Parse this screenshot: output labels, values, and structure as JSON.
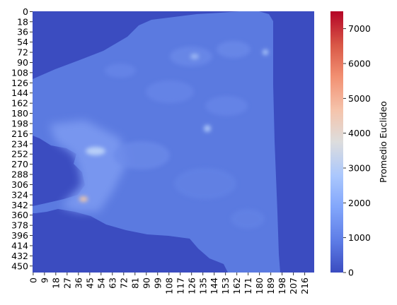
{
  "chart_data": {
    "type": "heatmap",
    "title": "",
    "xlabel": "",
    "ylabel": "",
    "colormap": "coolwarm",
    "background_value": 0,
    "x_tick_labels": [
      "0",
      "9",
      "18",
      "27",
      "36",
      "45",
      "54",
      "63",
      "72",
      "81",
      "90",
      "99",
      "108",
      "117",
      "126",
      "135",
      "144",
      "153",
      "162",
      "171",
      "180",
      "189",
      "198",
      "207",
      "216"
    ],
    "y_tick_labels": [
      "0",
      "18",
      "36",
      "54",
      "72",
      "90",
      "108",
      "126",
      "144",
      "162",
      "180",
      "198",
      "216",
      "234",
      "252",
      "270",
      "288",
      "306",
      "324",
      "342",
      "360",
      "378",
      "396",
      "414",
      "432",
      "450"
    ],
    "x_range": [
      0,
      224
    ],
    "y_range": [
      0,
      462
    ],
    "colorbar": {
      "label": "Promedio Euclideo",
      "range": [
        0,
        7500
      ],
      "ticks": [
        "0",
        "1000",
        "2000",
        "3000",
        "4000",
        "5000",
        "6000",
        "7000"
      ]
    },
    "regions": [
      {
        "name": "mainland",
        "value_range": [
          600,
          1500
        ],
        "typical_value": 900
      },
      {
        "name": "western coastal band",
        "value_range": [
          1500,
          3000
        ],
        "typical_value": 2000
      },
      {
        "name": "bright spot near (45, 250)",
        "value": 3800
      },
      {
        "name": "bright spot near (40, 340)",
        "value": 4500
      },
      {
        "name": "bright spot near (140, 200)",
        "value": 3000
      }
    ]
  },
  "colors": {
    "cool_end": "#3b4cc0",
    "neutral": "#dddddd",
    "warm_end": "#b40426"
  }
}
